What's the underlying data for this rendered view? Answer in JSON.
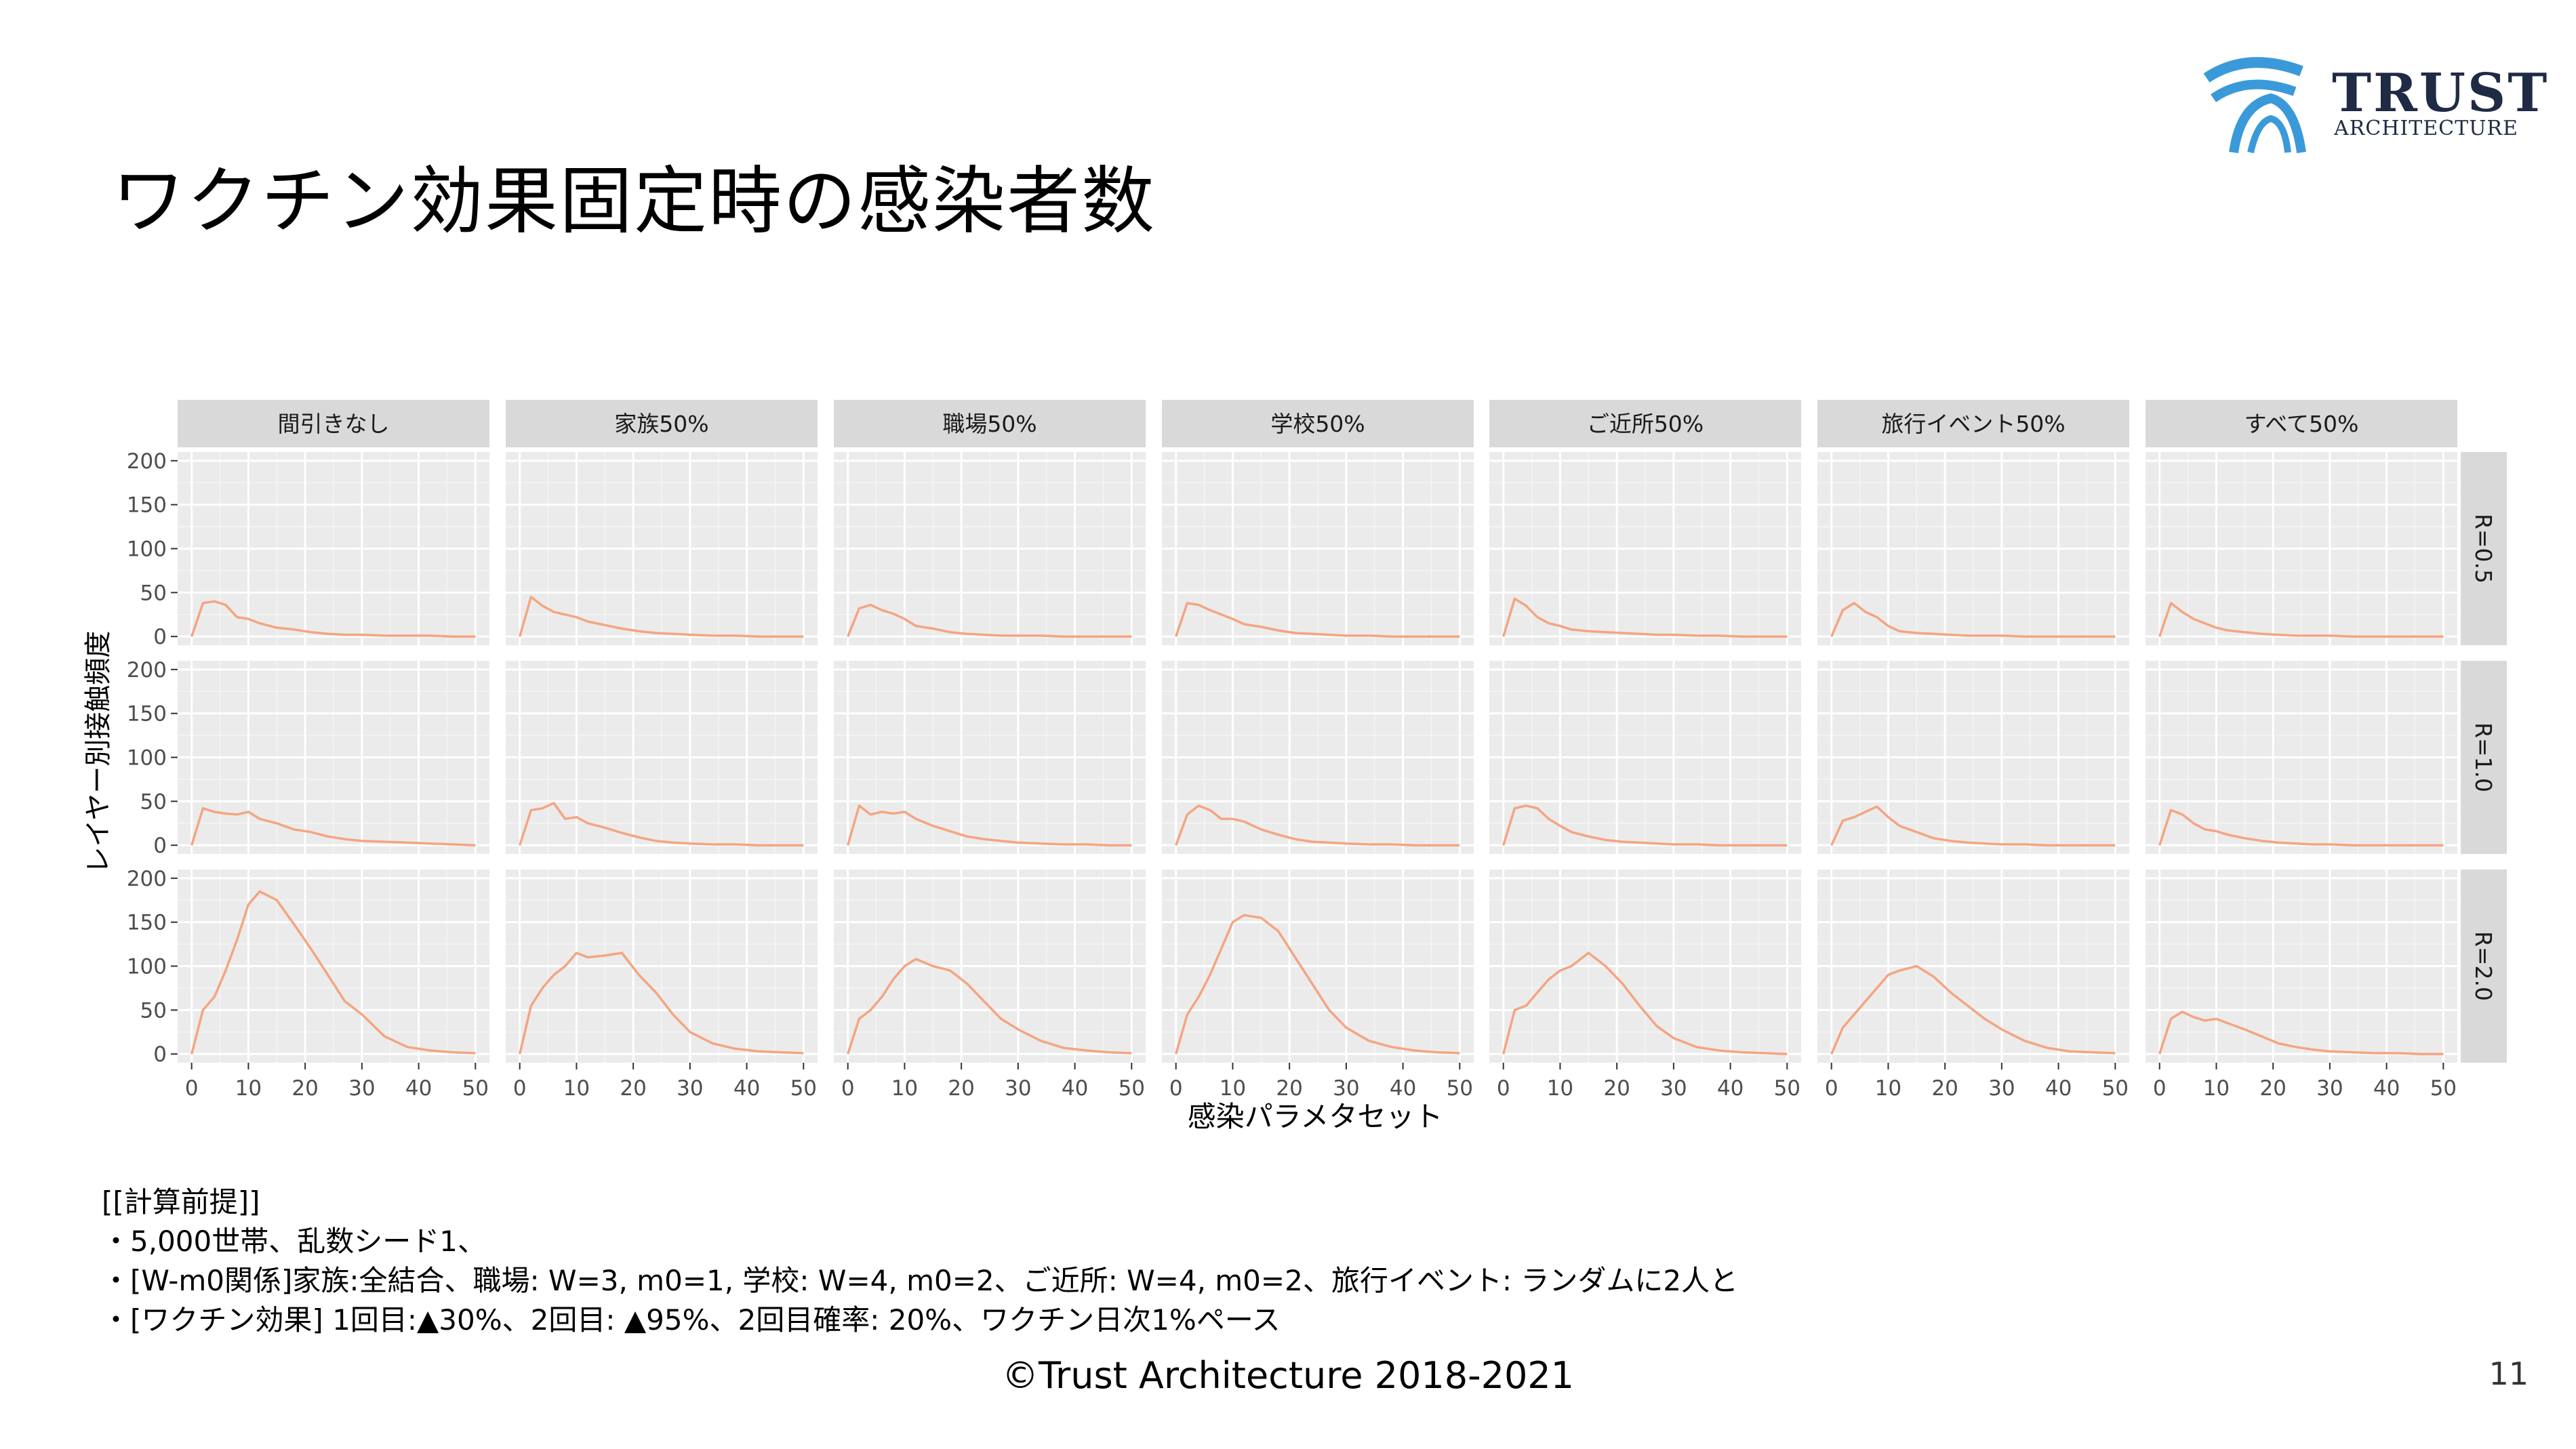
{
  "slide": {
    "title": "ワクチン効果固定時の感染者数",
    "logo_text_1": "TRUST",
    "logo_text_2": "ARCHITECTURE",
    "notes": [
      "[[計算前提]]",
      "・5,000世帯、乱数シード1、",
      "・[W-m0関係]家族:全結合、職場: W=3, m0=1, 学校: W=4, m0=2、ご近所: W=4, m0=2、旅行イベント: ランダムに2人と",
      "・[ワクチン効果] 1回目:▲30%、2回目: ▲95%、2回目確率: 20%、ワクチン日次1%ペース"
    ],
    "footer": "©Trust Architecture 2018-2021",
    "page_number": "11"
  },
  "chart_data": {
    "type": "line",
    "facet": "grid",
    "xlabel": "感染パラメタセット",
    "ylabel": "レイヤー別接触頻度",
    "xlim": [
      0,
      50
    ],
    "ylim": [
      0,
      200
    ],
    "x_ticks": [
      0,
      10,
      20,
      30,
      40,
      50
    ],
    "y_ticks": [
      0,
      50,
      100,
      150,
      200
    ],
    "grid": true,
    "line_color": "#f4a582",
    "panel_bg": "#ebebeb",
    "strip_bg": "#d9d9d9",
    "columns": [
      "間引きなし",
      "家族50%",
      "職場50%",
      "学校50%",
      "ご近所50%",
      "旅行イベント50%",
      "すべて50%"
    ],
    "rows": [
      "R=0.5",
      "R=1.0",
      "R=2.0"
    ],
    "x_knots": [
      0,
      2,
      4,
      6,
      8,
      10,
      12,
      15,
      18,
      21,
      24,
      27,
      30,
      34,
      38,
      42,
      46,
      50
    ],
    "panels": {
      "R=0.5": [
        [
          0,
          38,
          40,
          36,
          22,
          20,
          15,
          10,
          8,
          5,
          3,
          2,
          2,
          1,
          1,
          1,
          0,
          0
        ],
        [
          0,
          45,
          35,
          28,
          25,
          22,
          17,
          13,
          9,
          6,
          4,
          3,
          2,
          1,
          1,
          0,
          0,
          0
        ],
        [
          0,
          32,
          36,
          30,
          26,
          20,
          12,
          9,
          5,
          3,
          2,
          1,
          1,
          1,
          0,
          0,
          0,
          0
        ],
        [
          0,
          38,
          36,
          30,
          25,
          20,
          14,
          11,
          7,
          4,
          3,
          2,
          1,
          1,
          0,
          0,
          0,
          0
        ],
        [
          0,
          43,
          35,
          22,
          15,
          12,
          8,
          6,
          5,
          4,
          3,
          2,
          2,
          1,
          1,
          0,
          0,
          0
        ],
        [
          0,
          30,
          38,
          28,
          22,
          12,
          6,
          4,
          3,
          2,
          1,
          1,
          1,
          0,
          0,
          0,
          0,
          0
        ],
        [
          0,
          38,
          28,
          20,
          15,
          10,
          7,
          5,
          3,
          2,
          1,
          1,
          1,
          0,
          0,
          0,
          0,
          0
        ]
      ],
      "R=1.0": [
        [
          0,
          42,
          38,
          36,
          35,
          38,
          30,
          25,
          18,
          15,
          10,
          7,
          5,
          4,
          3,
          2,
          1,
          0
        ],
        [
          0,
          40,
          42,
          48,
          30,
          32,
          25,
          20,
          14,
          9,
          5,
          3,
          2,
          1,
          1,
          0,
          0,
          0
        ],
        [
          0,
          45,
          35,
          38,
          36,
          38,
          30,
          22,
          16,
          10,
          7,
          5,
          3,
          2,
          1,
          1,
          0,
          0
        ],
        [
          0,
          35,
          45,
          40,
          30,
          30,
          27,
          18,
          12,
          7,
          4,
          3,
          2,
          1,
          1,
          0,
          0,
          0
        ],
        [
          0,
          42,
          45,
          42,
          30,
          22,
          15,
          10,
          6,
          4,
          3,
          2,
          1,
          1,
          0,
          0,
          0,
          0
        ],
        [
          0,
          28,
          32,
          38,
          44,
          32,
          22,
          15,
          8,
          5,
          3,
          2,
          1,
          1,
          0,
          0,
          0,
          0
        ],
        [
          0,
          40,
          35,
          25,
          18,
          16,
          12,
          8,
          5,
          3,
          2,
          1,
          1,
          0,
          0,
          0,
          0,
          0
        ]
      ],
      "R=2.0": [
        [
          0,
          50,
          65,
          95,
          130,
          170,
          185,
          175,
          148,
          120,
          90,
          60,
          45,
          20,
          8,
          4,
          2,
          1
        ],
        [
          0,
          55,
          75,
          90,
          100,
          115,
          110,
          112,
          115,
          90,
          70,
          45,
          25,
          12,
          6,
          3,
          2,
          1
        ],
        [
          0,
          40,
          50,
          65,
          85,
          100,
          108,
          100,
          95,
          80,
          60,
          40,
          28,
          15,
          7,
          4,
          2,
          1
        ],
        [
          0,
          45,
          65,
          90,
          120,
          150,
          158,
          155,
          140,
          110,
          80,
          50,
          30,
          15,
          8,
          4,
          2,
          1
        ],
        [
          0,
          50,
          55,
          70,
          85,
          95,
          100,
          115,
          100,
          80,
          55,
          32,
          18,
          8,
          4,
          2,
          1,
          0
        ],
        [
          0,
          30,
          45,
          60,
          75,
          90,
          95,
          100,
          88,
          70,
          55,
          40,
          28,
          15,
          7,
          3,
          2,
          1
        ],
        [
          0,
          40,
          48,
          42,
          38,
          40,
          35,
          28,
          20,
          12,
          8,
          5,
          3,
          2,
          1,
          1,
          0,
          0
        ]
      ]
    }
  }
}
